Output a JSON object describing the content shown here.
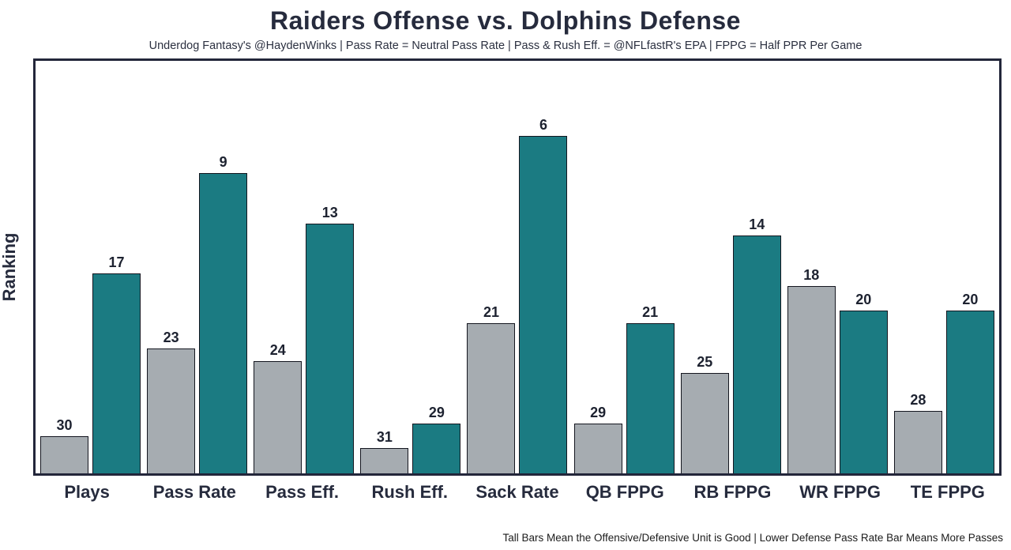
{
  "header": {
    "title": "Raiders Offense vs. Dolphins Defense",
    "subtitle": "Underdog Fantasy's @HaydenWinks | Pass Rate = Neutral Pass Rate | Pass & Rush Eff. = @NFLfastR's EPA | FPPG = Half PPR Per Game"
  },
  "footer": {
    "note": "Tall Bars Mean the Offensive/Defensive Unit is Good | Lower Defense Pass Rate Bar Means More Passes"
  },
  "colors": {
    "offense_bar": "#a6acb1",
    "defense_bar": "#1b7b82",
    "frame": "#23263a",
    "text": "#262b3d"
  },
  "chart_data": {
    "type": "bar",
    "title": "Raiders Offense vs. Dolphins Defense",
    "ylabel": "Ranking",
    "xlabel": "",
    "grid": false,
    "legend": "none",
    "categories": [
      "Plays",
      "Pass Rate",
      "Pass Eff.",
      "Rush Eff.",
      "Sack Rate",
      "QB FPPG",
      "RB FPPG",
      "WR FPPG",
      "TE FPPG"
    ],
    "series": [
      {
        "name": "Raiders Offense",
        "color": "#a6acb1",
        "values": [
          30,
          23,
          24,
          31,
          21,
          29,
          25,
          18,
          28
        ]
      },
      {
        "name": "Dolphins Defense",
        "color": "#1b7b82",
        "values": [
          17,
          9,
          13,
          29,
          6,
          21,
          14,
          20,
          20
        ]
      }
    ],
    "value_semantics": "values are rankings; lower ranking renders as a taller bar",
    "rank_scale_base": 33,
    "ylim": [
      0,
      33
    ]
  }
}
